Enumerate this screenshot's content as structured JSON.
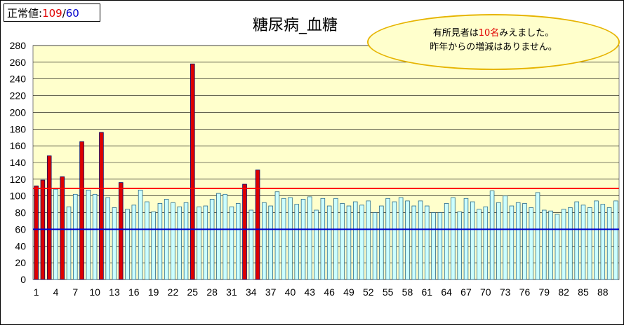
{
  "normal_box": {
    "label": "正常値:",
    "upper": "109",
    "sep": "/",
    "lower": "60"
  },
  "callout": {
    "line1_pre": "有所見者は",
    "line1_num": "10名",
    "line1_post": "みえました。",
    "line2": "昨年からの増減はありません。"
  },
  "colors": {
    "normal_bar": "#ccffff",
    "abnormal_bar": "#dd0000",
    "upper_line": "#ff0000",
    "lower_line": "#0000cc",
    "plot_bg": "#ffffcc"
  },
  "chart_data": {
    "type": "bar",
    "title": "糖尿病_血糖",
    "ylim": [
      0,
      280
    ],
    "y_ticks": [
      "0",
      "20",
      "40",
      "60",
      "80",
      "100",
      "120",
      "140",
      "160",
      "180",
      "200",
      "220",
      "240",
      "260",
      "280"
    ],
    "x_tick_labels": [
      "1",
      "4",
      "7",
      "10",
      "13",
      "16",
      "19",
      "22",
      "25",
      "28",
      "31",
      "34",
      "37",
      "40",
      "43",
      "46",
      "49",
      "52",
      "55",
      "58",
      "61",
      "64",
      "67",
      "70",
      "73",
      "76",
      "79",
      "82",
      "85",
      "88"
    ],
    "reference_lines": [
      {
        "value": 109,
        "color": "#ff0000"
      },
      {
        "value": 60,
        "color": "#0000cc"
      }
    ],
    "threshold": 109,
    "grid": true,
    "values": [
      112,
      119,
      148,
      108,
      123,
      87,
      102,
      165,
      107,
      102,
      176,
      98,
      86,
      116,
      84,
      89,
      107,
      93,
      81,
      91,
      96,
      92,
      87,
      92,
      258,
      87,
      88,
      96,
      103,
      102,
      87,
      91,
      114,
      83,
      131,
      92,
      88,
      105,
      97,
      98,
      90,
      96,
      99,
      83,
      97,
      88,
      97,
      91,
      88,
      93,
      89,
      94,
      80,
      88,
      97,
      93,
      98,
      94,
      88,
      94,
      88,
      80,
      80,
      91,
      98,
      81,
      97,
      93,
      84,
      87,
      106,
      92,
      100,
      88,
      92,
      91,
      86,
      104,
      83,
      82,
      78,
      84,
      86,
      93,
      89,
      86,
      94,
      90,
      86,
      94
    ]
  }
}
